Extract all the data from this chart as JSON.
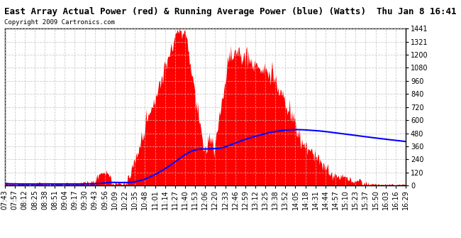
{
  "title": "East Array Actual Power (red) & Running Average Power (blue) (Watts)  Thu Jan 8 16:41",
  "copyright": "Copyright 2009 Cartronics.com",
  "ylim": [
    0.0,
    1440.6
  ],
  "yticks": [
    0.0,
    120.1,
    240.1,
    360.2,
    480.2,
    600.3,
    720.3,
    840.4,
    960.4,
    1080.5,
    1200.5,
    1320.6,
    1440.6
  ],
  "x_labels": [
    "07:43",
    "07:57",
    "08:12",
    "08:25",
    "08:38",
    "08:51",
    "09:04",
    "09:17",
    "09:30",
    "09:43",
    "09:56",
    "10:09",
    "10:22",
    "10:35",
    "10:48",
    "11:01",
    "11:14",
    "11:27",
    "11:40",
    "11:53",
    "12:06",
    "12:20",
    "12:33",
    "12:46",
    "12:59",
    "13:12",
    "13:25",
    "13:38",
    "13:52",
    "14:05",
    "14:18",
    "14:31",
    "14:44",
    "14:57",
    "15:10",
    "15:23",
    "15:37",
    "15:50",
    "16:03",
    "16:16",
    "16:29"
  ],
  "bg_color": "#ffffff",
  "grid_color": "#c0c0c0",
  "area_color": "#ff0000",
  "line_color": "#0000ff",
  "title_color": "#000000",
  "title_fontsize": 9,
  "tick_fontsize": 7,
  "copyright_fontsize": 6.5
}
